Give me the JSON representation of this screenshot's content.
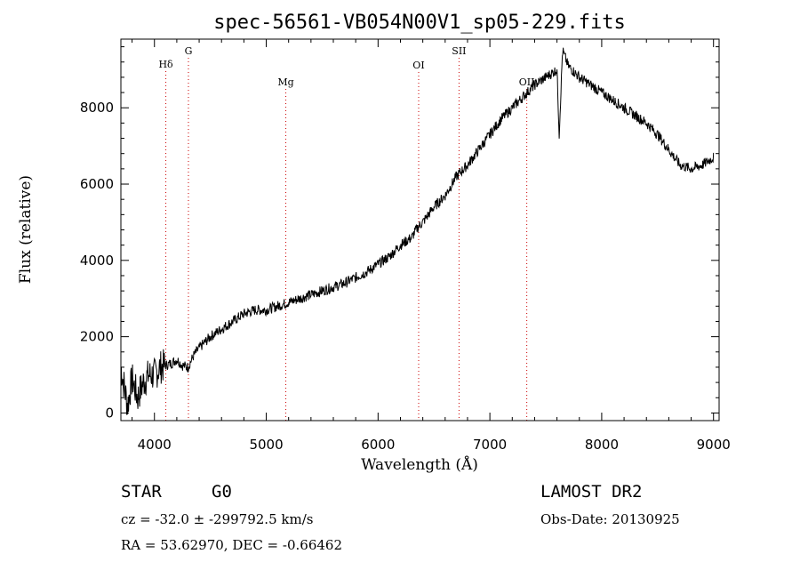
{
  "chart_data": {
    "type": "line",
    "title": "spec-56561-VB054N00V1_sp05-229.fits",
    "xlabel": "Wavelength (Å)",
    "ylabel": "Flux (relative)",
    "xlim": [
      3700,
      9050
    ],
    "ylim": [
      -200,
      9800
    ],
    "xticks": [
      4000,
      5000,
      6000,
      7000,
      8000,
      9000
    ],
    "yticks": [
      0,
      2000,
      4000,
      6000,
      8000
    ],
    "grid": false,
    "line_color": "#000000",
    "marker_color": "#cc0000",
    "spectral_lines": [
      {
        "label": "Hδ",
        "wavelength": 4102
      },
      {
        "label": "G",
        "wavelength": 4304
      },
      {
        "label": "Mg",
        "wavelength": 5175
      },
      {
        "label": "OI",
        "wavelength": 6363
      },
      {
        "label": "SII",
        "wavelength": 6724
      },
      {
        "label": "OII",
        "wavelength": 7330
      }
    ],
    "series": [
      {
        "x": [
          3700,
          3760,
          3800,
          3850,
          3900,
          3950,
          4000,
          4050,
          4100,
          4150,
          4200,
          4250,
          4300,
          4350,
          4400,
          4500,
          4600,
          4700,
          4800,
          4900,
          5000,
          5100,
          5200,
          5300,
          5400,
          5500,
          5600,
          5700,
          5800,
          5900,
          6000,
          6100,
          6200,
          6300,
          6350,
          6400,
          6500,
          6600,
          6700,
          6800,
          6900,
          7000,
          7100,
          7200,
          7300,
          7400,
          7500,
          7550,
          7600,
          7620,
          7650,
          7700,
          7800,
          7900,
          8000,
          8100,
          8200,
          8300,
          8400,
          8500,
          8600,
          8700,
          8800,
          8900,
          9000
        ],
        "y": [
          1200,
          200,
          900,
          400,
          800,
          1000,
          1000,
          1200,
          1250,
          1300,
          1400,
          1250,
          1200,
          1500,
          1700,
          2000,
          2200,
          2400,
          2600,
          2700,
          2700,
          2800,
          2900,
          3000,
          3100,
          3200,
          3300,
          3400,
          3550,
          3700,
          3900,
          4100,
          4400,
          4600,
          4850,
          5000,
          5400,
          5700,
          6200,
          6500,
          6900,
          7300,
          7700,
          8000,
          8300,
          8600,
          8800,
          8900,
          9000,
          7300,
          9500,
          9100,
          8800,
          8600,
          8400,
          8200,
          8000,
          7800,
          7600,
          7300,
          6900,
          6500,
          6400,
          6500,
          6700
        ]
      }
    ]
  },
  "info": {
    "object_class": "STAR",
    "subclass": "G0",
    "survey": "LAMOST DR2",
    "redshift_line": "cz = -32.0 ± -299792.5 km/s",
    "obs_date_line": "Obs-Date: 20130925",
    "coords_line": "RA =  53.62970, DEC =  -0.66462"
  }
}
